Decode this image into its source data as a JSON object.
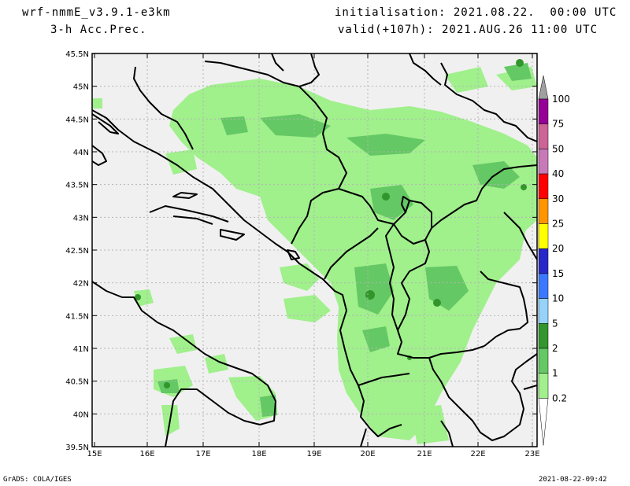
{
  "header": {
    "model": "wrf-nmmE_v3.9.1-e3km",
    "field": "3-h Acc.Prec.",
    "init": "initialisation: 2021.08.22.  00:00 UTC",
    "valid": "valid(+107h): 2021.AUG.26 11:00 UTC"
  },
  "footer": {
    "credit": "GrADS: COLA/IGES",
    "timestamp": "2021-08-22-09:42"
  },
  "map": {
    "lat_labels": [
      "45.5N",
      "45N",
      "44.5N",
      "44N",
      "43.5N",
      "43N",
      "42.5N",
      "42N",
      "41.5N",
      "41N",
      "40.5N",
      "40N",
      "39.5N"
    ],
    "lon_labels": [
      "15E",
      "16E",
      "17E",
      "18E",
      "19E",
      "20E",
      "21E",
      "22E",
      "23E"
    ],
    "ocean_color": "#f0f0f0",
    "grid": true
  },
  "legend": {
    "labels": [
      "100",
      "75",
      "50",
      "40",
      "30",
      "25",
      "20",
      "15",
      "10",
      "5",
      "2",
      "1",
      "0.2"
    ],
    "colors": [
      "#960096",
      "#cd6496",
      "#c87ab8",
      "#ff0000",
      "#ff9600",
      "#ffff00",
      "#2828c8",
      "#3c78ff",
      "#96d2fa",
      "#32962d",
      "#64c864",
      "#a0f08c"
    ],
    "top_arrow_color": "#a0a0a0"
  }
}
